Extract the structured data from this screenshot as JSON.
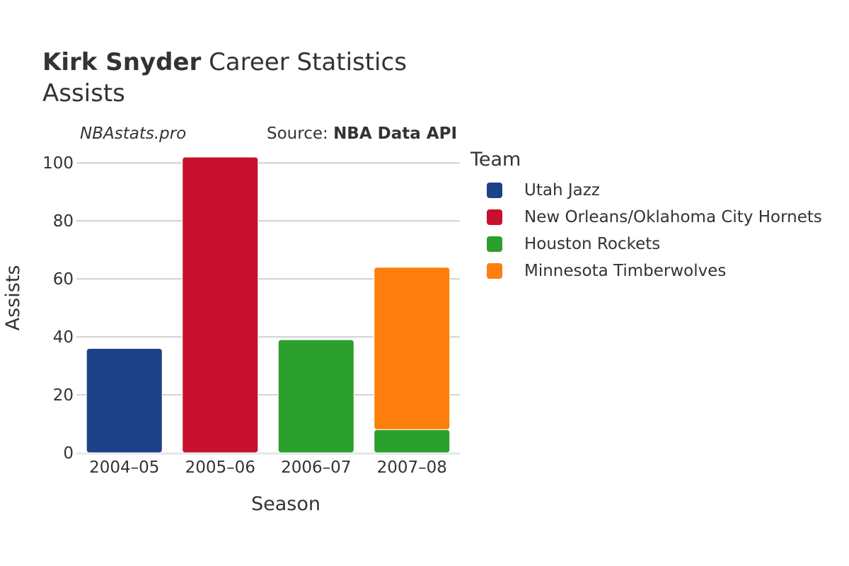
{
  "header": {
    "player_name": "Kirk Snyder",
    "title_rest": "Career Statistics",
    "subtitle": "Assists"
  },
  "credit": "NBAstats.pro",
  "source": {
    "prefix": "Source: ",
    "name": "NBA Data API"
  },
  "legend": {
    "title": "Team"
  },
  "chart_data": {
    "type": "bar",
    "stacked": true,
    "title": "Kirk Snyder Career Statistics",
    "subtitle": "Assists",
    "xlabel": "Season",
    "ylabel": "Assists",
    "ylim": [
      0,
      102
    ],
    "yticks": [
      0,
      20,
      40,
      60,
      80,
      100
    ],
    "categories": [
      "2004–05",
      "2005–06",
      "2006–07",
      "2007–08"
    ],
    "series": [
      {
        "name": "Utah Jazz",
        "color": "#1f4188",
        "values": [
          36,
          0,
          0,
          0
        ]
      },
      {
        "name": "New Orleans/Oklahoma City Hornets",
        "color": "#c8102e",
        "values": [
          0,
          102,
          0,
          0
        ]
      },
      {
        "name": "Houston Rockets",
        "color": "#2ca02c",
        "values": [
          0,
          0,
          39,
          8
        ]
      },
      {
        "name": "Minnesota Timberwolves",
        "color": "#ff7f0e",
        "values": [
          0,
          0,
          0,
          56
        ]
      }
    ],
    "legend_position": "right",
    "grid": true
  }
}
